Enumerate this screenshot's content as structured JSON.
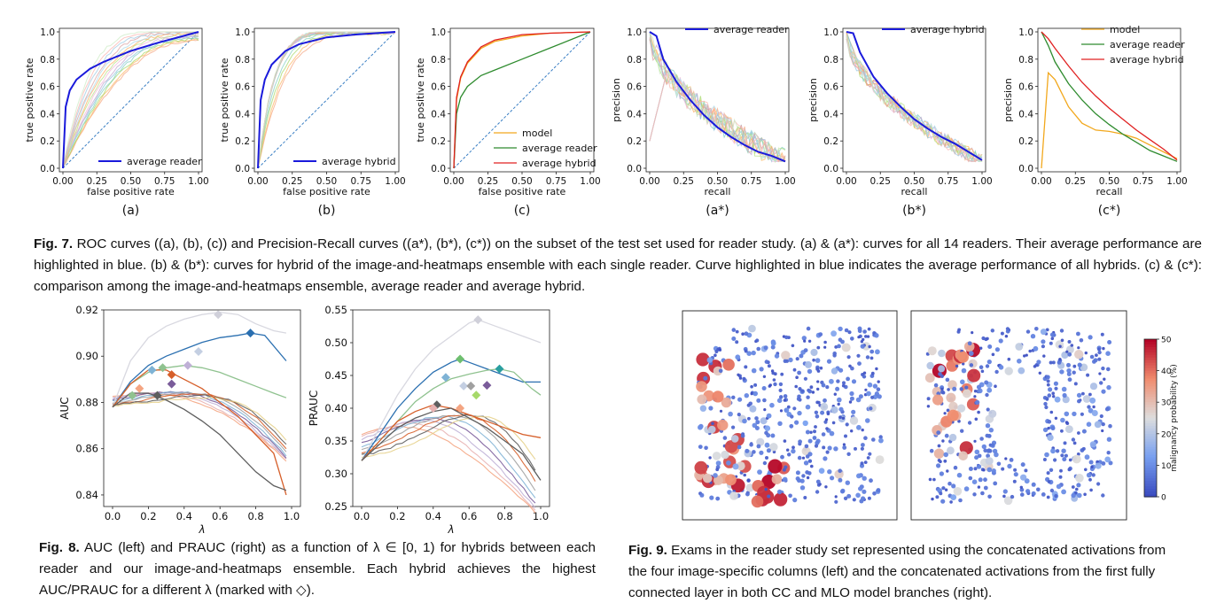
{
  "fig7": {
    "panels": [
      {
        "id": "a",
        "kind": "roc",
        "xlabel": "false positive rate",
        "ylabel": "true positive rate",
        "sub": "(a)",
        "legend": [
          {
            "label": "average reader",
            "color": "#1a1adb"
          }
        ]
      },
      {
        "id": "b",
        "kind": "roc",
        "xlabel": "false positive rate",
        "ylabel": "true positive rate",
        "sub": "(b)",
        "legend": [
          {
            "label": "average hybrid",
            "color": "#1a1adb"
          }
        ]
      },
      {
        "id": "c",
        "kind": "roc",
        "xlabel": "false positive rate",
        "ylabel": "true positive rate",
        "sub": "(c)",
        "legend": [
          {
            "label": "model",
            "color": "#f2a81d"
          },
          {
            "label": "average reader",
            "color": "#2e8b2e"
          },
          {
            "label": "average hybrid",
            "color": "#e02020"
          }
        ]
      },
      {
        "id": "a*",
        "kind": "pr",
        "xlabel": "recall",
        "ylabel": "precision",
        "sub": "(a*)",
        "legend": [
          {
            "label": "average reader",
            "color": "#1a1adb"
          }
        ]
      },
      {
        "id": "b*",
        "kind": "pr",
        "xlabel": "recall",
        "ylabel": "precision",
        "sub": "(b*)",
        "legend": [
          {
            "label": "average hybrid",
            "color": "#1a1adb"
          }
        ]
      },
      {
        "id": "c*",
        "kind": "pr",
        "xlabel": "recall",
        "ylabel": "precision",
        "sub": "(c*)",
        "legend": [
          {
            "label": "model",
            "color": "#f2a81d"
          },
          {
            "label": "average reader",
            "color": "#2e8b2e"
          },
          {
            "label": "average hybrid",
            "color": "#e02020"
          }
        ]
      }
    ],
    "ticks": [
      "0.00",
      "0.25",
      "0.50",
      "0.75",
      "1.00"
    ],
    "yticks": [
      "0.0",
      "0.2",
      "0.4",
      "0.6",
      "0.8",
      "1.0"
    ],
    "caption_label": "Fig. 7.",
    "caption_text": " ROC curves ((a), (b), (c)) and Precision-Recall curves ((a*), (b*), (c*)) on the subset of the test set used for reader study. (a) & (a*): curves for all 14 readers. Their average performance are highlighted in blue. (b) & (b*): curves for hybrid of the image-and-heatmaps ensemble with each single reader. Curve highlighted in blue indicates the average performance of all hybrids. (c) & (c*): comparison among the image-and-heatmaps ensemble, average reader and average hybrid."
  },
  "fig8": {
    "caption_label": "Fig. 8.",
    "caption_text": " AUC (left) and PRAUC (right) as a function of λ ∈ [0, 1) for hybrids between each reader and our image-and-heatmaps ensemble. Each hybrid achieves the highest AUC/PRAUC for a different λ (marked with ◇).",
    "left_ylabel": "AUC",
    "right_ylabel": "PRAUC",
    "xlabel": "λ",
    "left_yticks": [
      "0.84",
      "0.86",
      "0.88",
      "0.90",
      "0.92"
    ],
    "right_yticks": [
      "0.25",
      "0.30",
      "0.35",
      "0.40",
      "0.45",
      "0.50",
      "0.55"
    ],
    "xticks": [
      "0.0",
      "0.2",
      "0.4",
      "0.6",
      "0.8",
      "1.0"
    ]
  },
  "fig9": {
    "caption_label": "Fig. 9.",
    "caption_text": " Exams in the reader study set represented using the concatenated activations from the four image-specific columns (left) and the concatenated activations from the first fully connected layer in both CC and MLO model branches (right).",
    "colorbar_label": "malignancy probability (%)",
    "colorbar_ticks": [
      "0",
      "10",
      "20",
      "30",
      "40",
      "50"
    ]
  },
  "chart_data": [
    {
      "type": "line",
      "title": "",
      "xlabel": "false positive rate",
      "ylabel": "true positive rate",
      "xlim": [
        0,
        1
      ],
      "ylim": [
        0,
        1
      ],
      "series": [
        {
          "name": "average reader",
          "x": [
            0,
            0.02,
            0.05,
            0.1,
            0.2,
            0.3,
            0.5,
            0.7,
            1.0
          ],
          "y": [
            0,
            0.45,
            0.57,
            0.65,
            0.73,
            0.78,
            0.86,
            0.92,
            1.0
          ]
        }
      ]
    },
    {
      "type": "line",
      "title": "",
      "xlabel": "false positive rate",
      "ylabel": "true positive rate",
      "xlim": [
        0,
        1
      ],
      "ylim": [
        0,
        1
      ],
      "series": [
        {
          "name": "average hybrid",
          "x": [
            0,
            0.02,
            0.05,
            0.1,
            0.2,
            0.3,
            0.5,
            0.7,
            1.0
          ],
          "y": [
            0,
            0.5,
            0.65,
            0.76,
            0.86,
            0.91,
            0.96,
            0.98,
            1.0
          ]
        }
      ]
    },
    {
      "type": "line",
      "title": "",
      "xlabel": "false positive rate",
      "ylabel": "true positive rate",
      "xlim": [
        0,
        1
      ],
      "ylim": [
        0,
        1
      ],
      "series": [
        {
          "name": "model",
          "x": [
            0,
            0.02,
            0.05,
            0.1,
            0.2,
            0.3,
            0.5,
            0.7,
            1.0
          ],
          "y": [
            0,
            0.5,
            0.66,
            0.77,
            0.88,
            0.93,
            0.97,
            0.99,
            1.0
          ]
        },
        {
          "name": "average reader",
          "x": [
            0,
            0.02,
            0.05,
            0.1,
            0.2,
            0.3,
            0.5,
            0.7,
            1.0
          ],
          "y": [
            0,
            0.4,
            0.52,
            0.6,
            0.68,
            0.72,
            0.8,
            0.88,
            1.0
          ]
        },
        {
          "name": "average hybrid",
          "x": [
            0,
            0.02,
            0.05,
            0.1,
            0.2,
            0.3,
            0.5,
            0.7,
            1.0
          ],
          "y": [
            0,
            0.52,
            0.67,
            0.78,
            0.89,
            0.94,
            0.98,
            0.99,
            1.0
          ]
        }
      ]
    },
    {
      "type": "line",
      "title": "",
      "xlabel": "recall",
      "ylabel": "precision",
      "xlim": [
        0,
        1
      ],
      "ylim": [
        0,
        1
      ],
      "series": [
        {
          "name": "average reader",
          "x": [
            0.0,
            0.05,
            0.1,
            0.2,
            0.3,
            0.4,
            0.5,
            0.6,
            0.7,
            0.8,
            0.9,
            1.0
          ],
          "y": [
            1.0,
            0.97,
            0.8,
            0.63,
            0.5,
            0.39,
            0.3,
            0.23,
            0.17,
            0.12,
            0.09,
            0.05
          ]
        }
      ]
    },
    {
      "type": "line",
      "title": "",
      "xlabel": "recall",
      "ylabel": "precision",
      "xlim": [
        0,
        1
      ],
      "ylim": [
        0,
        1
      ],
      "series": [
        {
          "name": "average hybrid",
          "x": [
            0.0,
            0.05,
            0.1,
            0.2,
            0.3,
            0.4,
            0.5,
            0.6,
            0.7,
            0.8,
            0.9,
            1.0
          ],
          "y": [
            1.0,
            0.99,
            0.85,
            0.67,
            0.55,
            0.45,
            0.36,
            0.29,
            0.23,
            0.18,
            0.12,
            0.06
          ]
        }
      ]
    },
    {
      "type": "line",
      "title": "",
      "xlabel": "recall",
      "ylabel": "precision",
      "xlim": [
        0,
        1
      ],
      "ylim": [
        0,
        1
      ],
      "series": [
        {
          "name": "model",
          "x": [
            0.0,
            0.05,
            0.1,
            0.2,
            0.3,
            0.4,
            0.5,
            0.6,
            0.7,
            0.8,
            0.9,
            1.0
          ],
          "y": [
            0.0,
            0.7,
            0.65,
            0.45,
            0.33,
            0.28,
            0.27,
            0.25,
            0.22,
            0.17,
            0.12,
            0.07
          ]
        },
        {
          "name": "average reader",
          "x": [
            0.0,
            0.05,
            0.1,
            0.2,
            0.3,
            0.4,
            0.5,
            0.6,
            0.7,
            0.8,
            0.9,
            1.0
          ],
          "y": [
            1.0,
            0.9,
            0.78,
            0.62,
            0.5,
            0.4,
            0.32,
            0.25,
            0.19,
            0.13,
            0.09,
            0.05
          ]
        },
        {
          "name": "average hybrid",
          "x": [
            0.0,
            0.05,
            0.1,
            0.2,
            0.3,
            0.4,
            0.5,
            0.6,
            0.7,
            0.8,
            0.9,
            1.0
          ],
          "y": [
            1.0,
            0.95,
            0.88,
            0.75,
            0.63,
            0.53,
            0.44,
            0.36,
            0.28,
            0.21,
            0.14,
            0.06
          ]
        }
      ]
    },
    {
      "type": "line",
      "title": "",
      "xlabel": "λ",
      "ylabel": "AUC",
      "xlim": [
        0,
        1
      ],
      "ylim": [
        0.835,
        0.92
      ],
      "series": [
        {
          "x": [
            0,
            0.1,
            0.2,
            0.3,
            0.4,
            0.5,
            0.6,
            0.7,
            0.8,
            0.9,
            0.97
          ],
          "y": [
            0.878,
            0.898,
            0.908,
            0.913,
            0.916,
            0.918,
            0.919,
            0.918,
            0.914,
            0.911,
            0.91
          ]
        },
        {
          "x": [
            0,
            0.1,
            0.2,
            0.3,
            0.4,
            0.5,
            0.6,
            0.7,
            0.77,
            0.85,
            0.97
          ],
          "y": [
            0.878,
            0.889,
            0.896,
            0.9,
            0.903,
            0.906,
            0.908,
            0.909,
            0.91,
            0.909,
            0.898
          ]
        },
        {
          "x": [
            0,
            0.1,
            0.2,
            0.3,
            0.4,
            0.5,
            0.6,
            0.7,
            0.8,
            0.9,
            0.97
          ],
          "y": [
            0.878,
            0.888,
            0.893,
            0.895,
            0.896,
            0.895,
            0.893,
            0.89,
            0.887,
            0.884,
            0.882
          ]
        },
        {
          "x": [
            0,
            0.1,
            0.2,
            0.3,
            0.4,
            0.5,
            0.6,
            0.7,
            0.8,
            0.9,
            0.97
          ],
          "y": [
            0.878,
            0.888,
            0.894,
            0.894,
            0.89,
            0.886,
            0.88,
            0.874,
            0.866,
            0.858,
            0.84
          ]
        },
        {
          "x": [
            0,
            0.1,
            0.2,
            0.3,
            0.4,
            0.5,
            0.6,
            0.7,
            0.8,
            0.9,
            0.97
          ],
          "y": [
            0.878,
            0.884,
            0.884,
            0.881,
            0.877,
            0.872,
            0.866,
            0.858,
            0.85,
            0.844,
            0.842
          ]
        }
      ]
    },
    {
      "type": "line",
      "title": "",
      "xlabel": "λ",
      "ylabel": "PRAUC",
      "xlim": [
        0,
        1
      ],
      "ylim": [
        0.25,
        0.55
      ],
      "series": [
        {
          "x": [
            0,
            0.1,
            0.2,
            0.3,
            0.4,
            0.5,
            0.6,
            0.65,
            0.7,
            0.8,
            0.9,
            1.0
          ],
          "y": [
            0.32,
            0.37,
            0.42,
            0.46,
            0.49,
            0.51,
            0.53,
            0.535,
            0.53,
            0.52,
            0.51,
            0.5
          ]
        },
        {
          "x": [
            0,
            0.1,
            0.2,
            0.3,
            0.4,
            0.5,
            0.55,
            0.6,
            0.7,
            0.8,
            0.9,
            1.0
          ],
          "y": [
            0.32,
            0.36,
            0.4,
            0.43,
            0.455,
            0.47,
            0.475,
            0.47,
            0.46,
            0.45,
            0.44,
            0.44
          ]
        },
        {
          "x": [
            0,
            0.1,
            0.2,
            0.3,
            0.4,
            0.5,
            0.6,
            0.7,
            0.77,
            0.85,
            0.95,
            1.0
          ],
          "y": [
            0.32,
            0.35,
            0.38,
            0.41,
            0.43,
            0.445,
            0.452,
            0.458,
            0.46,
            0.455,
            0.43,
            0.42
          ]
        },
        {
          "x": [
            0,
            0.1,
            0.2,
            0.3,
            0.4,
            0.5,
            0.6,
            0.7,
            0.8,
            0.9,
            1.0
          ],
          "y": [
            0.32,
            0.35,
            0.38,
            0.395,
            0.405,
            0.4,
            0.39,
            0.38,
            0.37,
            0.36,
            0.355
          ]
        },
        {
          "x": [
            0,
            0.1,
            0.2,
            0.3,
            0.4,
            0.5,
            0.6,
            0.7,
            0.8,
            0.9,
            1.0
          ],
          "y": [
            0.32,
            0.345,
            0.37,
            0.385,
            0.395,
            0.4,
            0.385,
            0.37,
            0.35,
            0.33,
            0.29
          ]
        }
      ]
    }
  ]
}
